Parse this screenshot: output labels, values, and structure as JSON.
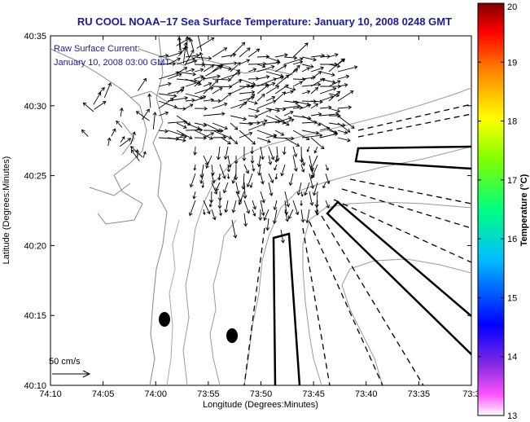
{
  "title": "RU COOL  NOAA−17  Sea Surface Temperature:  January 10, 2008 0248 GMT",
  "current_annotation": {
    "line1": "Raw Surface Current:",
    "line2": "January 10, 2008 03:00 GMT"
  },
  "scale": {
    "label": "50 cm/s"
  },
  "axes": {
    "xlabel": "Longitude (Degrees:Minutes)",
    "ylabel": "Latitude (Degrees:Minutes)",
    "xticks": [
      "74:10",
      "74:05",
      "74:00",
      "73:55",
      "73:50",
      "73:45",
      "73:40",
      "73:35",
      "73:3"
    ],
    "yticks": [
      "40:35",
      "40:30",
      "40:25",
      "40:20",
      "40:15",
      "40:10"
    ]
  },
  "colorbar": {
    "label": "Temperature (°C)",
    "ticks": [
      "20",
      "19",
      "18",
      "17",
      "16",
      "15",
      "14",
      "13"
    ],
    "min": 13,
    "max": 20
  },
  "colors": {
    "title_text": "#1a1aa0",
    "land": "#ffffff",
    "arrows": "#000000",
    "contours": "#999999"
  }
}
